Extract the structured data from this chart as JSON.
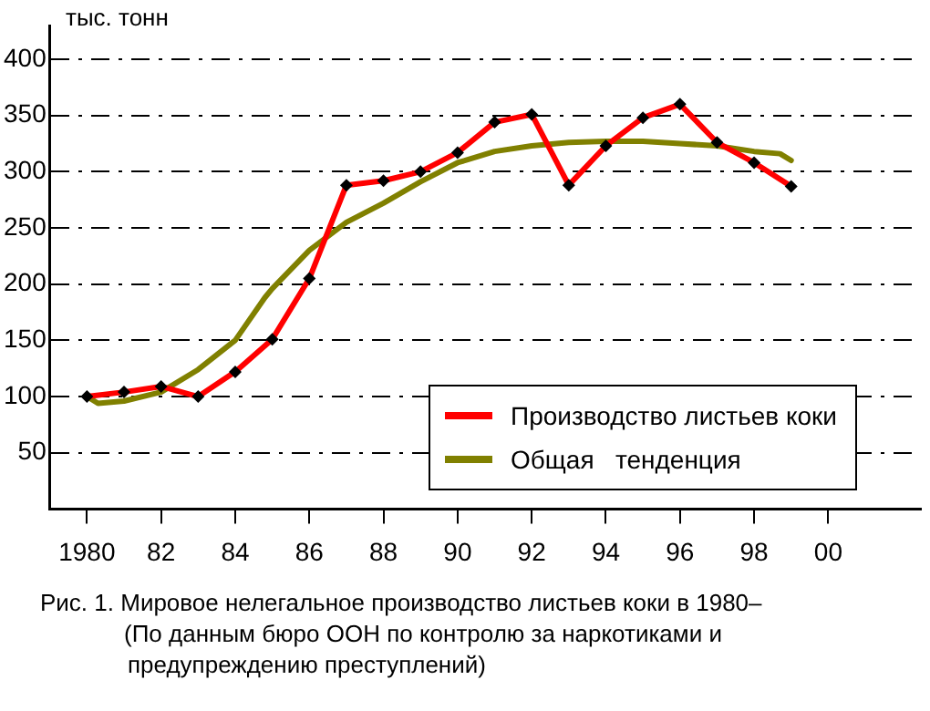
{
  "chart_data": {
    "type": "line",
    "ylabel": "тыс. тонн",
    "x": [
      1980,
      1981,
      1982,
      1983,
      1984,
      1985,
      1986,
      1987,
      1988,
      1989,
      1990,
      1991,
      1992,
      1993,
      1994,
      1995,
      1996,
      1997,
      1998,
      1999
    ],
    "series": [
      {
        "name": "Производство листьев коки",
        "color": "#ff0000",
        "marker": "diamond",
        "values": [
          100,
          104,
          109,
          100,
          122,
          151,
          205,
          288,
          292,
          300,
          317,
          344,
          351,
          288,
          323,
          348,
          360,
          326,
          308,
          287
        ]
      },
      {
        "name": "Общая   тенденция",
        "color": "#808000",
        "marker": "none",
        "x": [
          1980,
          1980.3,
          1981,
          1982,
          1983,
          1984,
          1984.8,
          1985,
          1986,
          1987,
          1988,
          1989,
          1990,
          1991,
          1992,
          1993,
          1994,
          1995,
          1996,
          1997,
          1998,
          1998.7,
          1999
        ],
        "values": [
          100,
          94,
          96,
          104,
          124,
          150,
          188,
          196,
          230,
          255,
          272,
          291,
          308,
          318,
          323,
          326,
          327,
          327,
          325,
          323,
          318,
          316,
          310
        ]
      }
    ],
    "xlim": [
      1979,
      2002.5
    ],
    "xticks": [
      {
        "value": 1980,
        "label": "1980"
      },
      {
        "value": 1982,
        "label": "82"
      },
      {
        "value": 1984,
        "label": "84"
      },
      {
        "value": 1986,
        "label": "86"
      },
      {
        "value": 1988,
        "label": "88"
      },
      {
        "value": 1990,
        "label": "90"
      },
      {
        "value": 1992,
        "label": "92"
      },
      {
        "value": 1994,
        "label": "94"
      },
      {
        "value": 1996,
        "label": "96"
      },
      {
        "value": 1998,
        "label": "98"
      },
      {
        "value": 2000,
        "label": "00"
      }
    ],
    "ylim": [
      0,
      430
    ],
    "yticks": [
      50,
      100,
      150,
      200,
      250,
      300,
      350,
      400
    ],
    "grid": "y",
    "legend": "bottom right",
    "line_style": "solid",
    "annotations": [
      "Рис. 1. Мировое нелегальное производство листьев коки в 1980–",
      "(По данным бюро ООН по контролю за наркотиками и",
      "предупреждению преступлений)"
    ]
  }
}
